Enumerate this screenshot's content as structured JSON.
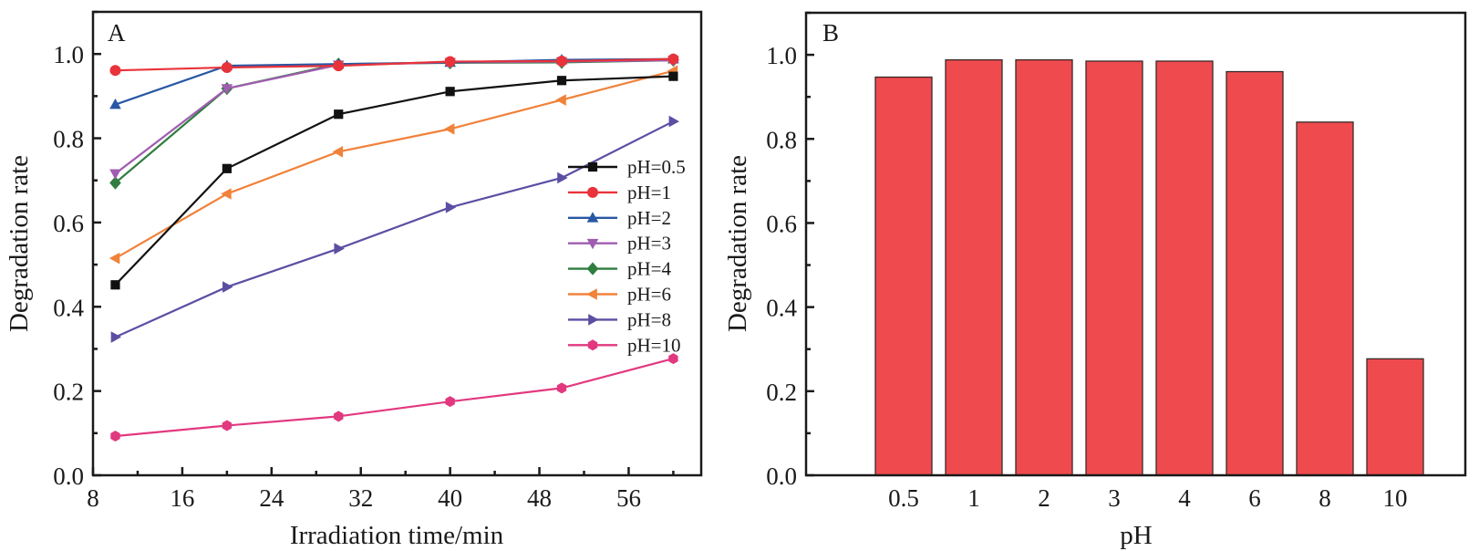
{
  "chart_data": [
    {
      "panel": "A",
      "type": "line",
      "title": "",
      "panel_label": "A",
      "xlabel": "Irradiation time/min",
      "ylabel": "Degradation rate",
      "xlim": [
        8,
        62.5
      ],
      "ylim": [
        0,
        1.1
      ],
      "xticks": [
        8,
        16,
        24,
        32,
        40,
        48,
        56
      ],
      "xtick_labels": [
        "8",
        "16",
        "24",
        "32",
        "40",
        "48",
        "56"
      ],
      "xminor_step": 4,
      "yticks": [
        0.0,
        0.2,
        0.4,
        0.6,
        0.8,
        1.0
      ],
      "ytick_labels": [
        "0.0",
        "0.2",
        "0.4",
        "0.6",
        "0.8",
        "1.0"
      ],
      "yminor_step": 0.1,
      "grid": false,
      "legend_position": "center-right",
      "x": [
        10,
        20,
        30,
        40,
        50,
        60
      ],
      "series": [
        {
          "name": "pH=0.5",
          "color": "#111111",
          "marker": "square",
          "values": [
            0.452,
            0.728,
            0.857,
            0.911,
            0.937,
            0.947
          ]
        },
        {
          "name": "pH=1",
          "color": "#e8333a",
          "marker": "circle",
          "values": [
            0.961,
            0.968,
            0.972,
            0.982,
            0.983,
            0.988
          ]
        },
        {
          "name": "pH=2",
          "color": "#2857a4",
          "marker": "triangle-up",
          "values": [
            0.88,
            0.972,
            0.976,
            0.98,
            0.986,
            0.988
          ]
        },
        {
          "name": "pH=3",
          "color": "#a05db0",
          "marker": "triangle-down",
          "values": [
            0.716,
            0.918,
            0.974,
            0.98,
            0.982,
            0.985
          ]
        },
        {
          "name": "pH=4",
          "color": "#2f7d3f",
          "marker": "diamond",
          "values": [
            0.694,
            0.918,
            0.976,
            0.979,
            0.98,
            0.985
          ]
        },
        {
          "name": "pH=6",
          "color": "#f0823a",
          "marker": "triangle-left",
          "values": [
            0.515,
            0.668,
            0.768,
            0.822,
            0.891,
            0.96
          ]
        },
        {
          "name": "pH=8",
          "color": "#5a4fa3",
          "marker": "triangle-right",
          "values": [
            0.328,
            0.447,
            0.538,
            0.636,
            0.706,
            0.84
          ]
        },
        {
          "name": "pH=10",
          "color": "#e2387f",
          "marker": "hexagon",
          "values": [
            0.093,
            0.118,
            0.14,
            0.175,
            0.207,
            0.277
          ]
        }
      ]
    },
    {
      "panel": "B",
      "type": "bar",
      "title": "",
      "panel_label": "B",
      "xlabel": "pH",
      "ylabel": "Degradation rate",
      "ylim": [
        0,
        1.1
      ],
      "yticks": [
        0.0,
        0.2,
        0.4,
        0.6,
        0.8,
        1.0
      ],
      "ytick_labels": [
        "0.0",
        "0.2",
        "0.4",
        "0.6",
        "0.8",
        "1.0"
      ],
      "yminor_step": 0.1,
      "grid": false,
      "categories": [
        "0.5",
        "1",
        "2",
        "3",
        "4",
        "6",
        "8",
        "10"
      ],
      "values": [
        0.947,
        0.988,
        0.988,
        0.985,
        0.985,
        0.96,
        0.84,
        0.277
      ],
      "bar_color": "#ef4b4e",
      "bar_edge_color": "#3a2a2a"
    }
  ]
}
